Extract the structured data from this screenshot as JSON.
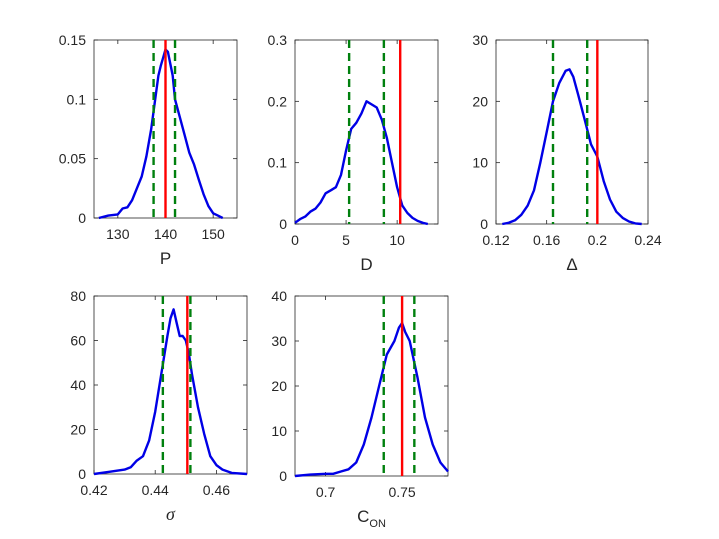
{
  "chart_data": [
    {
      "type": "line",
      "xlabel": "P",
      "xlim": [
        125,
        155
      ],
      "ylim": [
        0,
        0.15
      ],
      "xticks": [
        130,
        140,
        150
      ],
      "yticks": [
        0,
        0.05,
        0.1,
        0.15
      ],
      "ytick_labels": [
        "0",
        "0.05",
        "0.1",
        "0.15"
      ],
      "ci_lines": [
        137.5,
        142
      ],
      "true_value": 140,
      "series": [
        {
          "x": [
            126,
            128,
            130,
            131,
            132,
            133,
            134,
            135,
            136,
            137,
            138,
            138.5,
            139,
            139.5,
            140,
            140.5,
            141,
            141.5,
            142,
            143,
            144,
            145,
            146,
            147,
            148,
            149,
            150,
            151,
            152
          ],
          "y": [
            0,
            0.002,
            0.003,
            0.008,
            0.009,
            0.015,
            0.025,
            0.035,
            0.052,
            0.075,
            0.105,
            0.12,
            0.128,
            0.135,
            0.142,
            0.14,
            0.13,
            0.12,
            0.1,
            0.085,
            0.07,
            0.055,
            0.045,
            0.032,
            0.02,
            0.01,
            0.004,
            0.002,
            0
          ]
        }
      ]
    },
    {
      "type": "line",
      "xlabel": "D",
      "xlim": [
        0,
        14
      ],
      "ylim": [
        0,
        0.3
      ],
      "xticks": [
        0,
        5,
        10
      ],
      "yticks": [
        0,
        0.1,
        0.2,
        0.3
      ],
      "ytick_labels": [
        "0",
        "0.1",
        "0.2",
        "0.3"
      ],
      "ci_lines": [
        5.3,
        8.7
      ],
      "true_value": 10.3,
      "series": [
        {
          "x": [
            0,
            0.5,
            1,
            1.5,
            2,
            2.5,
            3,
            3.5,
            4,
            4.5,
            5,
            5.5,
            6,
            6.5,
            7,
            7.5,
            8,
            8.5,
            9,
            9.5,
            10,
            10.5,
            11,
            11.5,
            12,
            12.5,
            13
          ],
          "y": [
            0.002,
            0.008,
            0.012,
            0.02,
            0.025,
            0.035,
            0.05,
            0.055,
            0.06,
            0.08,
            0.12,
            0.155,
            0.165,
            0.18,
            0.2,
            0.195,
            0.19,
            0.17,
            0.14,
            0.1,
            0.06,
            0.03,
            0.018,
            0.01,
            0.005,
            0.002,
            0
          ]
        }
      ]
    },
    {
      "type": "line",
      "xlabel": "Δ",
      "xlim": [
        0.12,
        0.24
      ],
      "ylim": [
        0,
        30
      ],
      "xticks": [
        0.12,
        0.16,
        0.2,
        0.24
      ],
      "xtick_labels": [
        "0.12",
        "0.16",
        "0.2",
        "0.24"
      ],
      "yticks": [
        0,
        10,
        20,
        30
      ],
      "ytick_labels": [
        "0",
        "10",
        "20",
        "30"
      ],
      "ci_lines": [
        0.165,
        0.192
      ],
      "true_value": 0.2,
      "series": [
        {
          "x": [
            0.125,
            0.13,
            0.135,
            0.14,
            0.145,
            0.15,
            0.155,
            0.16,
            0.165,
            0.17,
            0.175,
            0.178,
            0.181,
            0.185,
            0.19,
            0.195,
            0.2,
            0.205,
            0.21,
            0.215,
            0.22,
            0.225,
            0.23,
            0.235
          ],
          "y": [
            0,
            0.2,
            0.6,
            1.5,
            3,
            5.5,
            10,
            15,
            20,
            23,
            25,
            25.2,
            24,
            21,
            17,
            13,
            11,
            7,
            4,
            2,
            1,
            0.4,
            0.1,
            0
          ]
        }
      ]
    },
    {
      "type": "line",
      "xlabel": "σ",
      "xlim": [
        0.42,
        0.47
      ],
      "ylim": [
        0,
        80
      ],
      "xticks": [
        0.42,
        0.44,
        0.46
      ],
      "xtick_labels": [
        "0.42",
        "0.44",
        "0.46"
      ],
      "yticks": [
        0,
        20,
        40,
        60,
        80
      ],
      "ytick_labels": [
        "0",
        "20",
        "40",
        "60",
        "80"
      ],
      "ci_lines": [
        0.4425,
        0.4515
      ],
      "true_value": 0.4505,
      "series": [
        {
          "x": [
            0.42,
            0.425,
            0.43,
            0.432,
            0.434,
            0.436,
            0.438,
            0.44,
            0.442,
            0.444,
            0.445,
            0.446,
            0.447,
            0.448,
            0.449,
            0.45,
            0.451,
            0.452,
            0.454,
            0.456,
            0.458,
            0.46,
            0.462,
            0.465,
            0.47
          ],
          "y": [
            0,
            1,
            2,
            3,
            6,
            8,
            15,
            28,
            45,
            62,
            70,
            74,
            68,
            62,
            62,
            60,
            54,
            45,
            30,
            18,
            8,
            4,
            2,
            0.5,
            0
          ]
        }
      ]
    },
    {
      "type": "line",
      "xlabel": "C_ON",
      "xlim": [
        0.68,
        0.78
      ],
      "ylim": [
        0,
        40
      ],
      "xticks": [
        0.7,
        0.75
      ],
      "xtick_labels": [
        "0.7",
        "0.75"
      ],
      "yticks": [
        0,
        10,
        20,
        30,
        40
      ],
      "ytick_labels": [
        "0",
        "10",
        "20",
        "30",
        "40"
      ],
      "ci_lines": [
        0.738,
        0.758
      ],
      "true_value": 0.75,
      "series": [
        {
          "x": [
            0.68,
            0.69,
            0.7,
            0.705,
            0.71,
            0.715,
            0.72,
            0.725,
            0.73,
            0.735,
            0.74,
            0.745,
            0.748,
            0.75,
            0.752,
            0.755,
            0.76,
            0.765,
            0.77,
            0.775,
            0.78
          ],
          "y": [
            0,
            0.3,
            0.5,
            0.5,
            1,
            1.5,
            3,
            7,
            13,
            20,
            27,
            30,
            33,
            34,
            32,
            30,
            22,
            13,
            7,
            3,
            1
          ]
        }
      ]
    }
  ],
  "colors": {
    "kde": "#0000e6",
    "ci": "#00800e",
    "truth": "#ff0000"
  }
}
